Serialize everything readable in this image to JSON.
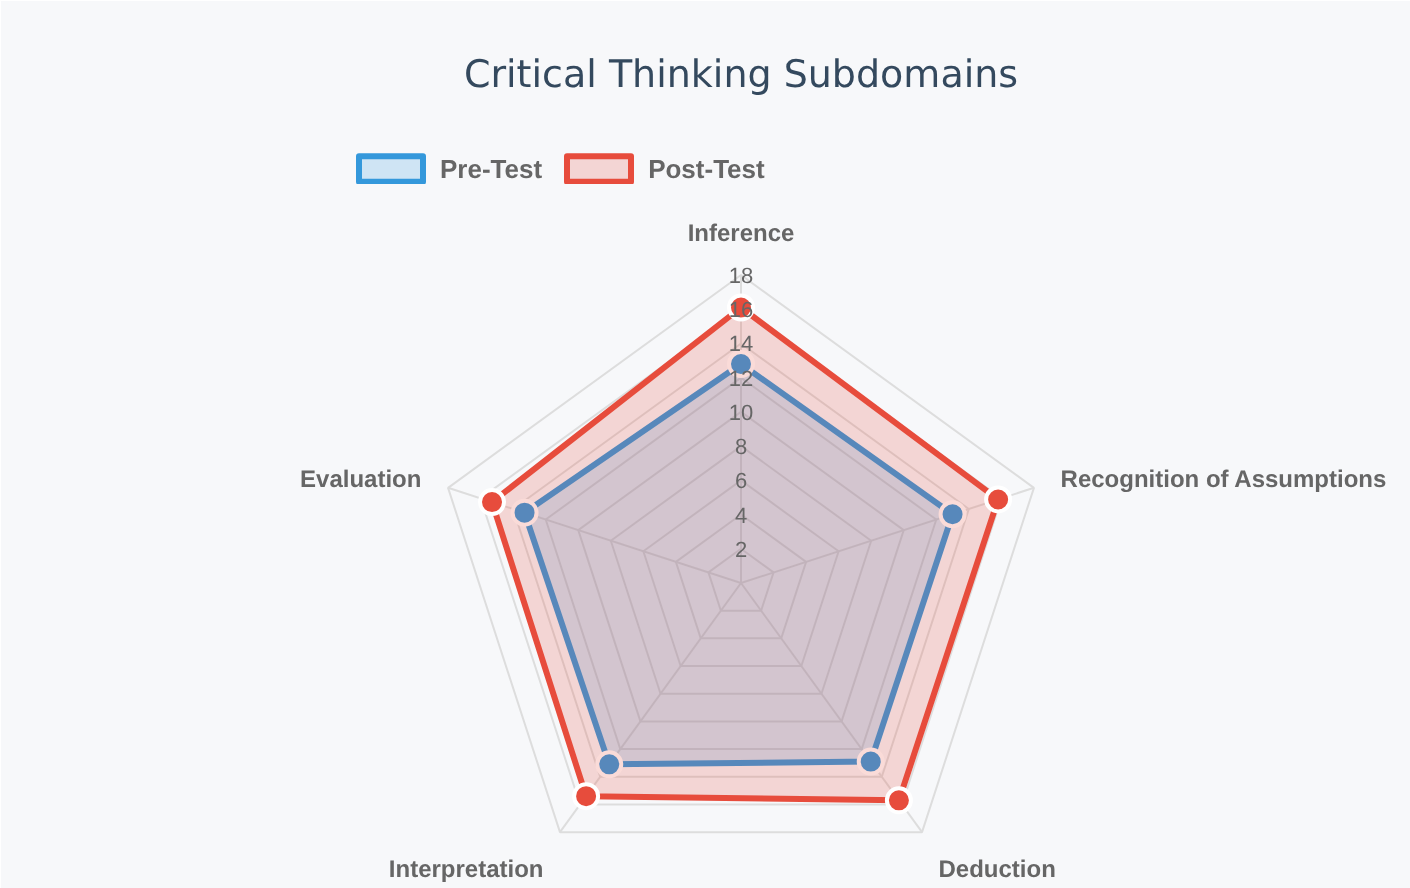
{
  "chart_data": {
    "type": "radar",
    "title": "Critical Thinking Subdomains",
    "categories": [
      "Inference",
      "Recognition of Assumptions",
      "Deduction",
      "Interpretation",
      "Evaluation"
    ],
    "series": [
      {
        "name": "Pre-Test",
        "color": "#3498db",
        "values": [
          12.8,
          13,
          12.9,
          13.1,
          13.3
        ]
      },
      {
        "name": "Post-Test",
        "color": "#e74c3c",
        "values": [
          16.1,
          15.8,
          15.7,
          15.4,
          15.3
        ]
      }
    ],
    "ylim": [
      0,
      18
    ],
    "yticks": [
      2,
      4,
      6,
      8,
      10,
      12,
      14,
      16,
      18
    ],
    "grid": true,
    "legend": "top",
    "marker": "circle"
  }
}
